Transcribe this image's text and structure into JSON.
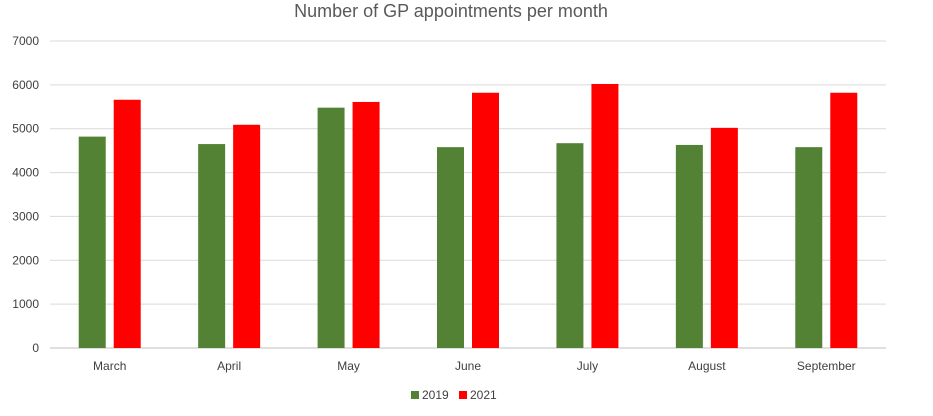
{
  "chart_data": {
    "type": "bar",
    "title": "Number of GP appointments per month",
    "xlabel": "",
    "ylabel": "",
    "ylim": [
      0,
      7000
    ],
    "yticks": [
      0,
      1000,
      2000,
      3000,
      4000,
      5000,
      6000,
      7000
    ],
    "grid": true,
    "legend_position": "bottom",
    "categories": [
      "March",
      "April",
      "May",
      "June",
      "July",
      "August",
      "September"
    ],
    "series": [
      {
        "name": "2019",
        "color": "#548235",
        "values": [
          4820,
          4650,
          5480,
          4580,
          4670,
          4630,
          4580
        ]
      },
      {
        "name": "2021",
        "color": "#ff0000",
        "values": [
          5660,
          5090,
          5610,
          5820,
          6020,
          5020,
          5820
        ]
      }
    ]
  }
}
